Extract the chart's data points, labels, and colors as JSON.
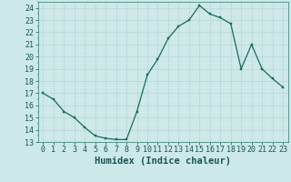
{
  "x": [
    0,
    1,
    2,
    3,
    4,
    5,
    6,
    7,
    8,
    9,
    10,
    11,
    12,
    13,
    14,
    15,
    16,
    17,
    18,
    19,
    20,
    21,
    22,
    23
  ],
  "y": [
    17.0,
    16.5,
    15.5,
    15.0,
    14.2,
    13.5,
    13.3,
    13.2,
    13.2,
    15.5,
    18.5,
    19.8,
    21.5,
    22.5,
    23.0,
    24.2,
    23.5,
    23.2,
    22.7,
    19.0,
    21.0,
    19.0,
    18.2,
    17.5
  ],
  "xlabel": "Humidex (Indice chaleur)",
  "ylim": [
    13,
    24.5
  ],
  "xlim": [
    -0.5,
    23.5
  ],
  "yticks": [
    13,
    14,
    15,
    16,
    17,
    18,
    19,
    20,
    21,
    22,
    23,
    24
  ],
  "xticks": [
    0,
    1,
    2,
    3,
    4,
    5,
    6,
    7,
    8,
    9,
    10,
    11,
    12,
    13,
    14,
    15,
    16,
    17,
    18,
    19,
    20,
    21,
    22,
    23
  ],
  "line_color": "#1a6b5a",
  "marker_color": "#1a6b5a",
  "bg_color": "#cce8e8",
  "grid_major_color": "#b8d4d4",
  "grid_minor_color": "#d8ecec",
  "xlabel_fontsize": 7.5,
  "tick_fontsize": 6.0
}
